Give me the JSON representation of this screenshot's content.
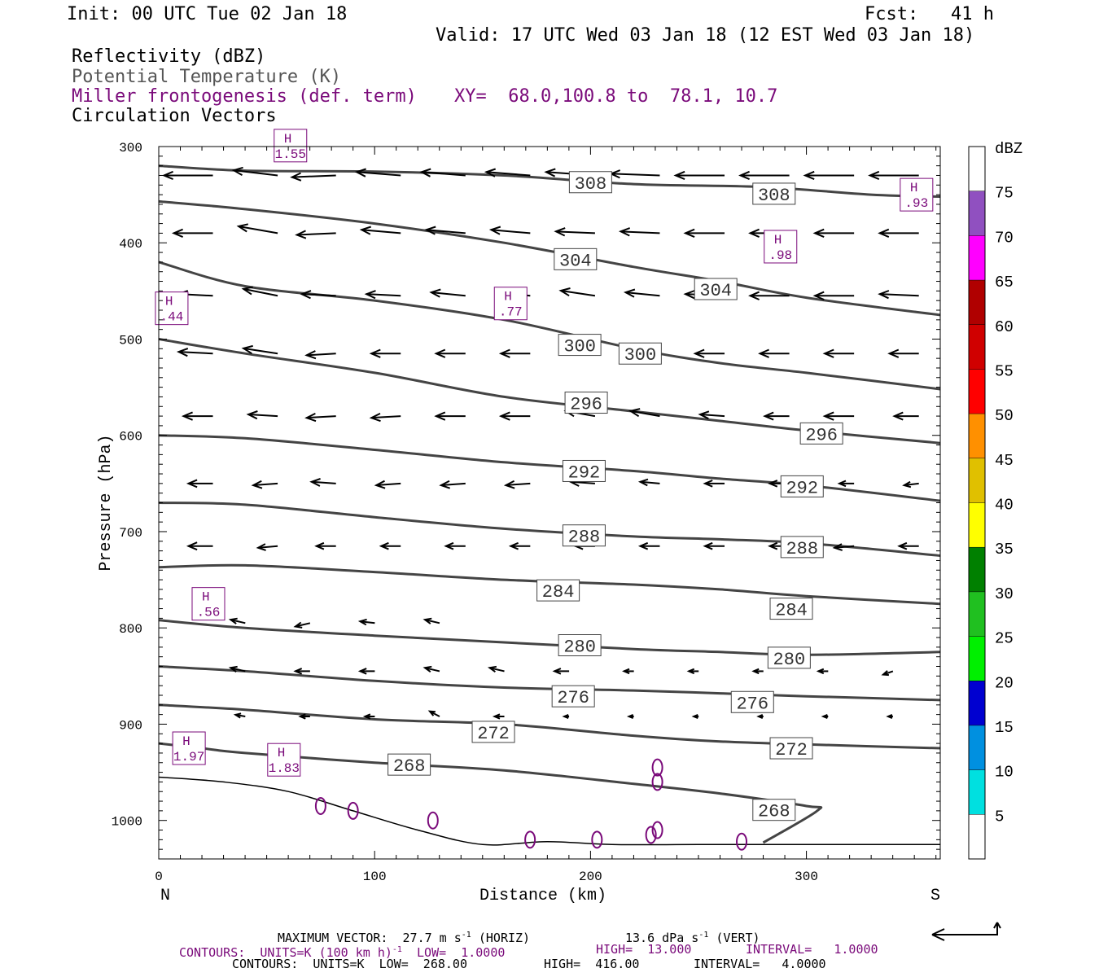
{
  "header": {
    "init": "Init: 00 UTC Tue 02 Jan 18",
    "fcst": "Fcst:   41 h",
    "valid": "Valid: 17 UTC Wed 03 Jan 18 (12 EST Wed 03 Jan 18)"
  },
  "fields": {
    "f1": "Reflectivity (dBZ)",
    "f2": "Potential Temperature (K)",
    "f3": "Miller frontogenesis (def. term)",
    "xy": "XY=  68.0,100.8 to  78.1, 10.7",
    "f4": "Circulation Vectors"
  },
  "footer": {
    "l1a": "MAXIMUM VECTOR:  27.7 m s",
    "l1b": "(HORIZ)",
    "l1c": "13.6 dPa s",
    "l1d": "(VERT)",
    "l2a": "CONTOURS:  UNITS=K (100 km h)",
    "l2b": "LOW=  1.0000",
    "l2c": "HIGH=  13.000",
    "l2d": "INTERVAL=   1.0000",
    "l3a": "CONTOURS:  UNITS=K  LOW=  268.00",
    "l3b": "HIGH=  416.00",
    "l3c": "INTERVAL=   4.0000",
    "sup": "-1"
  },
  "chart_data": {
    "type": "line",
    "xlabel": "Distance (km)",
    "ylabel": "Pressure (hPa)",
    "xlim": [
      0,
      362
    ],
    "ylim": [
      1040,
      300
    ],
    "y_scale": "linear, inverted",
    "x_ticks": [
      0,
      100,
      200,
      300
    ],
    "y_ticks": [
      300,
      400,
      500,
      600,
      700,
      800,
      900,
      1000
    ],
    "x_end_labels": {
      "left": "N",
      "right": "S"
    },
    "theta_contours": [
      {
        "k": 308,
        "pts": [
          [
            0,
            320
          ],
          [
            40,
            325
          ],
          [
            100,
            326
          ],
          [
            160,
            330
          ],
          [
            220,
            339
          ],
          [
            280,
            342
          ],
          [
            330,
            350
          ],
          [
            362,
            352
          ]
        ]
      },
      {
        "k": 304,
        "pts": [
          [
            0,
            357
          ],
          [
            40,
            365
          ],
          [
            100,
            380
          ],
          [
            160,
            400
          ],
          [
            220,
            425
          ],
          [
            260,
            440
          ],
          [
            300,
            457
          ],
          [
            362,
            475
          ]
        ]
      },
      {
        "k": 300,
        "pts": [
          [
            0,
            420
          ],
          [
            40,
            445
          ],
          [
            100,
            460
          ],
          [
            160,
            480
          ],
          [
            220,
            510
          ],
          [
            260,
            525
          ],
          [
            300,
            535
          ],
          [
            362,
            552
          ]
        ]
      },
      {
        "k": 296,
        "pts": [
          [
            0,
            500
          ],
          [
            40,
            515
          ],
          [
            100,
            535
          ],
          [
            160,
            560
          ],
          [
            220,
            575
          ],
          [
            260,
            585
          ],
          [
            300,
            595
          ],
          [
            362,
            608
          ]
        ]
      },
      {
        "k": 292,
        "pts": [
          [
            0,
            600
          ],
          [
            40,
            603
          ],
          [
            100,
            615
          ],
          [
            160,
            628
          ],
          [
            220,
            637
          ],
          [
            260,
            645
          ],
          [
            300,
            652
          ],
          [
            362,
            668
          ]
        ]
      },
      {
        "k": 288,
        "pts": [
          [
            0,
            670
          ],
          [
            40,
            672
          ],
          [
            100,
            685
          ],
          [
            160,
            697
          ],
          [
            220,
            705
          ],
          [
            260,
            708
          ],
          [
            300,
            712
          ],
          [
            362,
            725
          ]
        ]
      },
      {
        "k": 284,
        "pts": [
          [
            0,
            737
          ],
          [
            40,
            735
          ],
          [
            100,
            742
          ],
          [
            160,
            750
          ],
          [
            220,
            755
          ],
          [
            260,
            760
          ],
          [
            300,
            767
          ],
          [
            362,
            775
          ]
        ]
      },
      {
        "k": 280,
        "pts": [
          [
            0,
            792
          ],
          [
            40,
            800
          ],
          [
            100,
            808
          ],
          [
            160,
            815
          ],
          [
            220,
            822
          ],
          [
            260,
            825
          ],
          [
            300,
            828
          ],
          [
            362,
            825
          ]
        ]
      },
      {
        "k": 276,
        "pts": [
          [
            0,
            840
          ],
          [
            40,
            845
          ],
          [
            100,
            855
          ],
          [
            160,
            862
          ],
          [
            220,
            865
          ],
          [
            260,
            868
          ],
          [
            300,
            871
          ],
          [
            362,
            875
          ]
        ]
      },
      {
        "k": 272,
        "pts": [
          [
            0,
            880
          ],
          [
            40,
            885
          ],
          [
            100,
            895
          ],
          [
            160,
            900
          ],
          [
            220,
            912
          ],
          [
            260,
            918
          ],
          [
            300,
            921
          ],
          [
            362,
            925
          ]
        ]
      },
      {
        "k": 268,
        "pts": [
          [
            0,
            920
          ],
          [
            20,
            925
          ],
          [
            40,
            930
          ],
          [
            100,
            940
          ],
          [
            160,
            948
          ],
          [
            220,
            962
          ],
          [
            260,
            972
          ],
          [
            300,
            985
          ],
          [
            305,
            990
          ],
          [
            280,
            1023
          ]
        ]
      }
    ],
    "terrain": [
      [
        0,
        955
      ],
      [
        30,
        960
      ],
      [
        60,
        970
      ],
      [
        90,
        990
      ],
      [
        120,
        1010
      ],
      [
        150,
        1025
      ],
      [
        180,
        1022
      ],
      [
        210,
        1025
      ],
      [
        250,
        1025
      ],
      [
        300,
        1025
      ],
      [
        362,
        1025
      ]
    ],
    "theta_labels": [
      {
        "k": 308,
        "x": 200,
        "p": 337
      },
      {
        "k": 308,
        "x": 285,
        "p": 349
      },
      {
        "k": 304,
        "x": 193,
        "p": 417
      },
      {
        "k": 304,
        "x": 258,
        "p": 448
      },
      {
        "k": 300,
        "x": 195,
        "p": 506
      },
      {
        "k": 300,
        "x": 223,
        "p": 515
      },
      {
        "k": 296,
        "x": 198,
        "p": 566
      },
      {
        "k": 296,
        "x": 307,
        "p": 598
      },
      {
        "k": 292,
        "x": 197,
        "p": 637
      },
      {
        "k": 292,
        "x": 298,
        "p": 653
      },
      {
        "k": 288,
        "x": 197,
        "p": 704
      },
      {
        "k": 288,
        "x": 298,
        "p": 716
      },
      {
        "k": 284,
        "x": 185,
        "p": 761
      },
      {
        "k": 284,
        "x": 293,
        "p": 780
      },
      {
        "k": 280,
        "x": 195,
        "p": 818
      },
      {
        "k": 280,
        "x": 292,
        "p": 831
      },
      {
        "k": 276,
        "x": 192,
        "p": 871
      },
      {
        "k": 276,
        "x": 275,
        "p": 877
      },
      {
        "k": 272,
        "x": 155,
        "p": 908
      },
      {
        "k": 272,
        "x": 293,
        "p": 925
      },
      {
        "k": 268,
        "x": 116,
        "p": 942
      },
      {
        "k": 268,
        "x": 285,
        "p": 989
      }
    ],
    "frontogenesis_maxima": [
      {
        "label": "1.55",
        "x": 61,
        "p": 299
      },
      {
        "label": ".93",
        "x": 351,
        "p": 350
      },
      {
        "label": ".98",
        "x": 288,
        "p": 404
      },
      {
        "label": ".44",
        "x": 6,
        "p": 468
      },
      {
        "label": ".77",
        "x": 163,
        "p": 463
      },
      {
        "label": ".56",
        "x": 23,
        "p": 775
      },
      {
        "label": "1.97",
        "x": 14,
        "p": 925
      },
      {
        "label": "1.83",
        "x": 58,
        "p": 937
      }
    ],
    "vectors": [
      {
        "p": 330,
        "x": [
          10,
          40,
          67,
          97,
          127,
          157,
          187,
          217,
          247,
          277,
          307,
          337
        ],
        "u": [
          -1.0,
          -0.9,
          -0.9,
          -0.9,
          -0.9,
          -0.9,
          -1.0,
          -1.0,
          -1.0,
          -1.0,
          -1.0,
          -1.0
        ],
        "w": [
          0.0,
          0.3,
          -0.1,
          0.2,
          0.2,
          0.2,
          0.2,
          0.1,
          0.0,
          0.0,
          0.0,
          0.0
        ]
      },
      {
        "p": 390,
        "x": [
          10,
          40,
          67,
          97,
          127,
          157,
          187,
          217,
          247,
          277,
          307,
          337
        ],
        "u": [
          -0.8,
          -0.8,
          -0.8,
          -0.8,
          -0.8,
          -0.8,
          -0.8,
          -0.8,
          -0.8,
          -0.8,
          -0.8,
          -0.8
        ],
        "w": [
          0.0,
          0.4,
          -0.1,
          0.2,
          0.2,
          0.2,
          0.1,
          0.1,
          0.0,
          0.0,
          0.0,
          0.0
        ]
      },
      {
        "p": 455,
        "x": [
          10,
          40,
          67,
          97,
          127,
          157,
          187,
          217,
          247,
          277,
          307,
          337
        ],
        "u": [
          -0.7,
          -0.7,
          -0.7,
          -0.7,
          -0.7,
          -0.7,
          -0.7,
          -0.7,
          -0.8,
          -0.8,
          -0.8,
          -0.8
        ],
        "w": [
          0.1,
          0.4,
          0.1,
          0.1,
          0.2,
          0.2,
          0.3,
          0.2,
          0.1,
          0.0,
          0.0,
          0.1
        ]
      },
      {
        "p": 515,
        "x": [
          10,
          40,
          67,
          97,
          127,
          157,
          187,
          217,
          247,
          277,
          307,
          337
        ],
        "u": [
          -0.7,
          -0.7,
          -0.6,
          -0.6,
          -0.6,
          -0.6,
          -0.6,
          -0.5,
          -0.6,
          -0.6,
          -0.6,
          -0.6
        ],
        "w": [
          0.1,
          0.3,
          -0.1,
          0.0,
          0.0,
          0.0,
          0.5,
          0.3,
          0.0,
          0.0,
          0.0,
          0.0
        ]
      },
      {
        "p": 580,
        "x": [
          10,
          40,
          67,
          97,
          127,
          157,
          187,
          217,
          247,
          277,
          307,
          337
        ],
        "u": [
          -0.6,
          -0.6,
          -0.6,
          -0.6,
          -0.6,
          -0.6,
          -0.6,
          -0.6,
          -0.5,
          -0.5,
          -0.6,
          -0.5
        ],
        "w": [
          0.0,
          0.1,
          -0.1,
          -0.1,
          0.0,
          0.0,
          0.3,
          0.3,
          0.1,
          0.0,
          0.0,
          0.0
        ]
      },
      {
        "p": 650,
        "x": [
          10,
          40,
          67,
          97,
          127,
          157,
          187,
          217,
          247,
          277,
          307,
          337
        ],
        "u": [
          -0.5,
          -0.5,
          -0.5,
          -0.5,
          -0.5,
          -0.5,
          -0.5,
          -0.4,
          -0.4,
          -0.4,
          -0.3,
          -0.3
        ],
        "w": [
          0.0,
          -0.1,
          0.1,
          -0.1,
          -0.1,
          -0.1,
          0.1,
          0.1,
          0.0,
          0.0,
          0.0,
          -0.1
        ]
      },
      {
        "p": 715,
        "x": [
          10,
          40,
          67,
          97,
          127,
          157,
          187,
          217,
          247,
          277,
          307,
          337
        ],
        "u": [
          -0.5,
          -0.4,
          -0.4,
          -0.4,
          -0.4,
          -0.4,
          -0.4,
          -0.4,
          -0.4,
          -0.4,
          -0.4,
          -0.4
        ],
        "w": [
          0.0,
          -0.1,
          0.0,
          0.0,
          0.0,
          0.0,
          0.0,
          0.0,
          0.0,
          0.0,
          -0.1,
          0.0
        ]
      },
      {
        "p": 795,
        "x": [
          25,
          55,
          85,
          115
        ],
        "u": [
          -0.3,
          -0.3,
          -0.3,
          -0.3
        ],
        "w": [
          0.2,
          -0.2,
          0.1,
          0.2
        ]
      },
      {
        "p": 845,
        "x": [
          25,
          55,
          85,
          115,
          145,
          175,
          205,
          235,
          265,
          295,
          325
        ],
        "u": [
          -0.3,
          -0.3,
          -0.3,
          -0.3,
          -0.3,
          -0.3,
          -0.2,
          -0.2,
          -0.2,
          -0.2,
          -0.2
        ],
        "w": [
          0.2,
          0.0,
          0.0,
          0.2,
          0.2,
          0.0,
          0.0,
          0.0,
          0.0,
          0.0,
          -0.2
        ]
      },
      {
        "p": 892,
        "x": [
          25,
          55,
          85,
          115,
          145,
          175,
          205,
          235,
          265,
          295,
          325,
          355
        ],
        "u": [
          -0.2,
          -0.2,
          -0.2,
          -0.2,
          -0.2,
          -0.1,
          -0.1,
          -0.1,
          -0.1,
          -0.1,
          -0.1,
          -0.1
        ],
        "w": [
          0.1,
          0.0,
          0.0,
          0.3,
          0.0,
          0.0,
          0.0,
          0.0,
          0.0,
          0.0,
          0.0,
          0.0
        ]
      }
    ],
    "colorbar": {
      "label": "dBZ",
      "ticks": [
        5,
        10,
        15,
        20,
        25,
        30,
        35,
        40,
        45,
        50,
        55,
        60,
        65,
        70,
        75
      ],
      "colors": [
        "#00e0e0",
        "#0090e0",
        "#0000d0",
        "#00f000",
        "#20c020",
        "#008000",
        "#ffff00",
        "#e0c000",
        "#ff9000",
        "#ff0000",
        "#d00000",
        "#b00000",
        "#ff00ff",
        "#9050c0"
      ]
    },
    "max_vector_units": {
      "horiz": "m s-1",
      "vert": "dPa s-1"
    }
  }
}
